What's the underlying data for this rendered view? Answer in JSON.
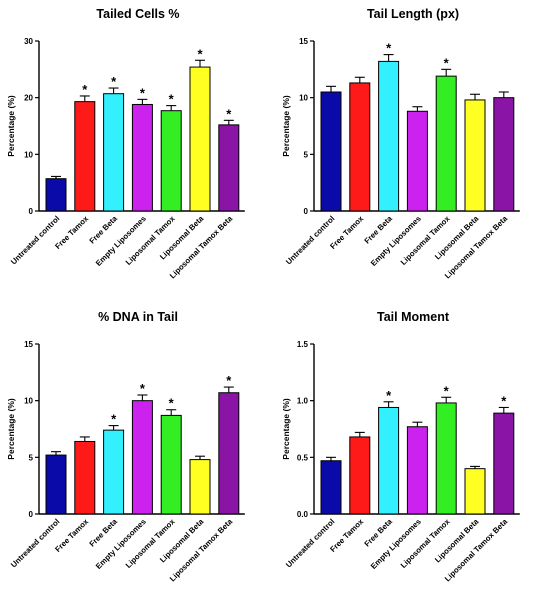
{
  "colors": {
    "bars": [
      "#0a0aa8",
      "#ff1a1a",
      "#33f0ff",
      "#cc22ee",
      "#33ee22",
      "#ffff22",
      "#8a14a6"
    ],
    "stroke": "#000000"
  },
  "chart_data": [
    {
      "type": "bar",
      "title": "Tailed Cells %",
      "ylabel": "Percentage (%)",
      "xlabel": "",
      "ylim": [
        0,
        30
      ],
      "yticks": [
        "0",
        "10",
        "20",
        "30"
      ],
      "categories": [
        "Untreated control",
        "Free Tamox",
        "Free Beta",
        "Empty Liposomes",
        "Liposomal Tamox",
        "Liposomal Beta",
        "Liposomal Tamox Beta"
      ],
      "values": [
        5.7,
        19.3,
        20.7,
        18.8,
        17.7,
        25.4,
        15.2
      ],
      "errors": [
        0.4,
        1.0,
        1.0,
        0.9,
        0.9,
        1.2,
        0.8
      ],
      "significance": [
        "",
        "*",
        "*",
        "*",
        "*",
        "*",
        "*"
      ],
      "grid": false
    },
    {
      "type": "bar",
      "title": "Tail Length (px)",
      "ylabel": "Percentage (%)",
      "xlabel": "",
      "ylim": [
        0,
        15
      ],
      "yticks": [
        "0",
        "5",
        "10",
        "15"
      ],
      "categories": [
        "Untreated control",
        "Free Tamox",
        "Free Beta",
        "Empty Liposomes",
        "Liposomal Tamox",
        "Liposomal Beta",
        "Liposomal Tamox Beta"
      ],
      "values": [
        10.5,
        11.3,
        13.2,
        8.8,
        11.9,
        9.8,
        10.0
      ],
      "errors": [
        0.5,
        0.5,
        0.6,
        0.4,
        0.6,
        0.5,
        0.5
      ],
      "significance": [
        "",
        "",
        "*",
        "",
        "*",
        "",
        ""
      ],
      "grid": false
    },
    {
      "type": "bar",
      "title": "% DNA in Tail",
      "ylabel": "Percentage (%)",
      "xlabel": "",
      "ylim": [
        0,
        15
      ],
      "yticks": [
        "0",
        "5",
        "10",
        "15"
      ],
      "categories": [
        "Untreated control",
        "Free Tamox",
        "Free Beta",
        "Empty Liposomes",
        "Liposomal Tamox",
        "Liposomal Beta",
        "Liposomal Tamox Beta"
      ],
      "values": [
        5.2,
        6.4,
        7.4,
        10.0,
        8.7,
        4.8,
        10.7
      ],
      "errors": [
        0.3,
        0.4,
        0.4,
        0.5,
        0.5,
        0.3,
        0.5
      ],
      "significance": [
        "",
        "",
        "*",
        "*",
        "*",
        "",
        "*"
      ],
      "grid": false
    },
    {
      "type": "bar",
      "title": "Tail Moment",
      "ylabel": "Percentage (%)",
      "xlabel": "",
      "ylim": [
        0,
        1.5
      ],
      "yticks": [
        "0.0",
        "0.5",
        "1.0",
        "1.5"
      ],
      "categories": [
        "Untreated control",
        "Free Tamox",
        "Free Beta",
        "Empty Liposomes",
        "Liposomal Tamox",
        "Liposomal Beta",
        "Liposomal Tamox Beta"
      ],
      "values": [
        0.47,
        0.68,
        0.94,
        0.77,
        0.98,
        0.4,
        0.89
      ],
      "errors": [
        0.03,
        0.04,
        0.05,
        0.04,
        0.05,
        0.02,
        0.05
      ],
      "significance": [
        "",
        "",
        "*",
        "",
        "*",
        "",
        "*"
      ],
      "grid": false
    }
  ]
}
